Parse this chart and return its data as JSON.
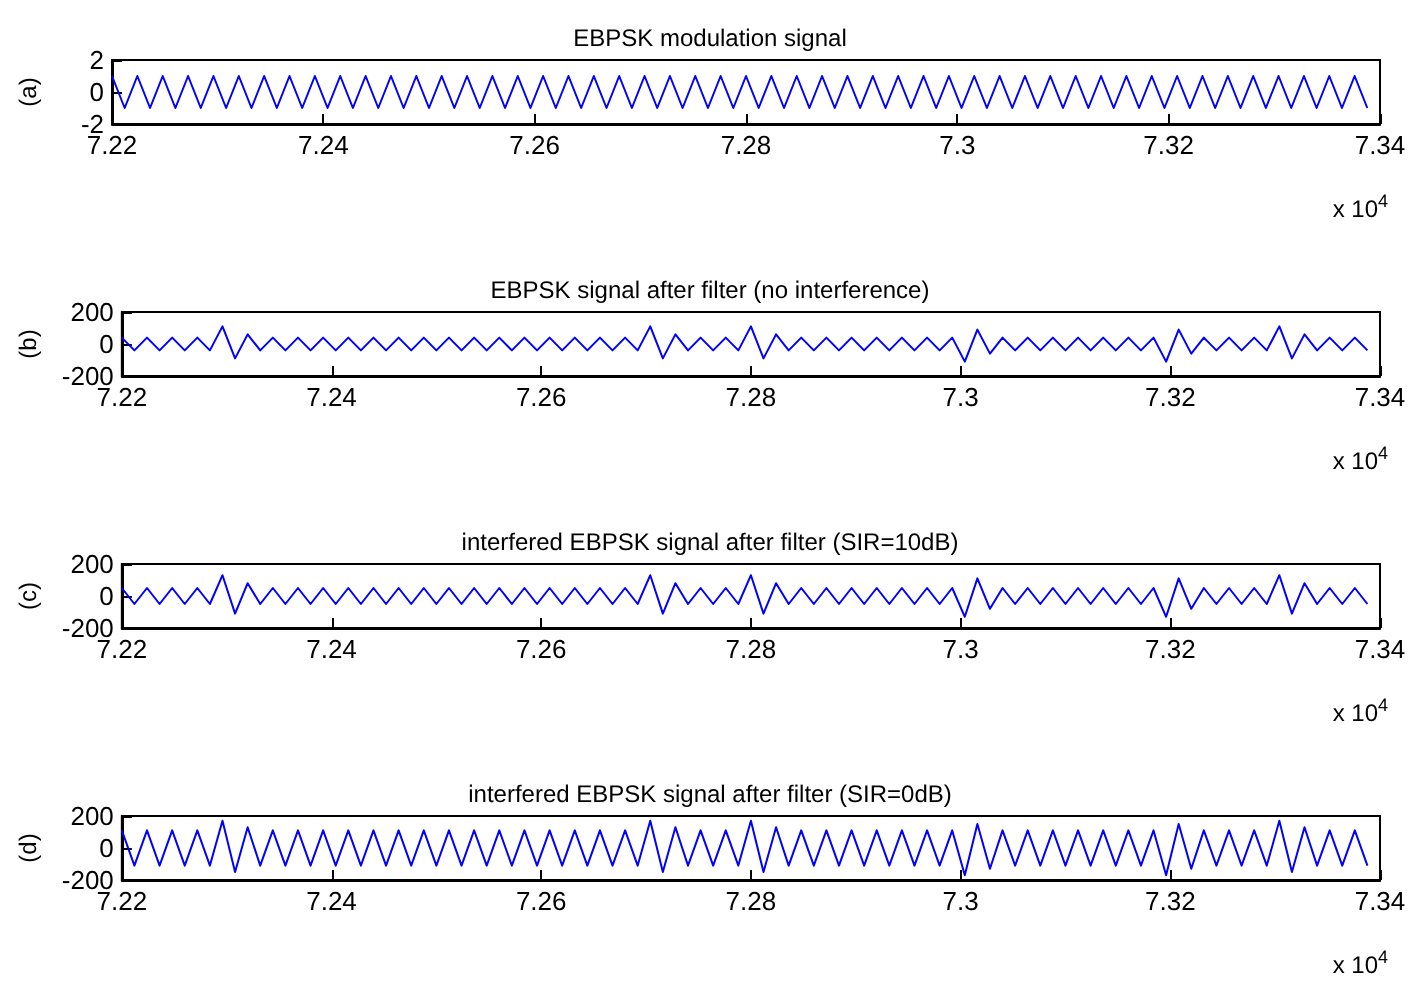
{
  "chart_data": [
    {
      "type": "line",
      "title": "EBPSK modulation signal",
      "ylabel": "(a)",
      "color": "#0000ff",
      "marker": "none",
      "grid": false,
      "x": [
        7.22,
        7.2212,
        7.2224,
        7.2236,
        7.2248,
        7.226,
        7.2272,
        7.2284,
        7.2296,
        7.2308,
        7.232,
        7.2332,
        7.2344,
        7.2356,
        7.2368,
        7.238,
        7.2392,
        7.2404,
        7.2416,
        7.2428,
        7.244,
        7.2452,
        7.2464,
        7.2476,
        7.2488,
        7.25,
        7.2512,
        7.2524,
        7.2536,
        7.2548,
        7.256,
        7.2572,
        7.2584,
        7.2596,
        7.2608,
        7.262,
        7.2632,
        7.2644,
        7.2656,
        7.2668,
        7.268,
        7.2692,
        7.2704,
        7.2716,
        7.2728,
        7.274,
        7.2752,
        7.2764,
        7.2776,
        7.2788,
        7.28,
        7.2812,
        7.2824,
        7.2836,
        7.2848,
        7.286,
        7.2872,
        7.2884,
        7.2896,
        7.2908,
        7.292,
        7.2932,
        7.2944,
        7.2956,
        7.2968,
        7.298,
        7.2992,
        7.3004,
        7.3016,
        7.3028,
        7.304,
        7.3052,
        7.3064,
        7.3076,
        7.3088,
        7.31,
        7.3112,
        7.3124,
        7.3136,
        7.3148,
        7.316,
        7.3172,
        7.3184,
        7.3196,
        7.3208,
        7.322,
        7.3232,
        7.3244,
        7.3256,
        7.3268,
        7.328,
        7.3292,
        7.3304,
        7.3316,
        7.3328,
        7.334,
        7.3352,
        7.3364,
        7.3376,
        7.3388
      ],
      "values": [
        1,
        -1,
        1,
        -1,
        1,
        -1,
        1,
        -1,
        1,
        -1,
        1,
        -1,
        1,
        -1,
        1,
        -1,
        1,
        -1,
        1,
        -1,
        1,
        -1,
        1,
        -1,
        1,
        -1,
        1,
        -1,
        1,
        -1,
        1,
        -1,
        1,
        -1,
        1,
        -1,
        1,
        -1,
        1,
        -1,
        1,
        -1,
        1,
        -1,
        1,
        -1,
        1,
        -1,
        1,
        -1,
        1,
        -1,
        1,
        -1,
        1,
        -1,
        1,
        -1,
        1,
        -1,
        1,
        -1,
        1,
        -1,
        1,
        -1,
        1,
        -1,
        1,
        -1,
        1,
        -1,
        1,
        -1,
        1,
        -1,
        1,
        -1,
        1,
        -1,
        1,
        -1,
        1,
        -1,
        1,
        -1,
        1,
        -1,
        1,
        -1,
        1,
        -1,
        1,
        -1,
        1,
        -1,
        1,
        -1,
        1,
        -1
      ],
      "xlim": [
        7.22,
        7.34
      ],
      "xticks": [
        7.22,
        7.24,
        7.26,
        7.28,
        7.3,
        7.32,
        7.34
      ],
      "ylim": [
        -2,
        2
      ],
      "yticks": [
        -2,
        0,
        2
      ],
      "annotations": [
        "x 10$^{4}$"
      ]
    },
    {
      "type": "line",
      "title": "EBPSK signal after filter (no interference)",
      "ylabel": "(b)",
      "color": "#0000ff",
      "marker": "none",
      "grid": false,
      "x": [
        7.22,
        7.2212,
        7.2224,
        7.2236,
        7.2248,
        7.226,
        7.2272,
        7.2284,
        7.2296,
        7.2308,
        7.232,
        7.2332,
        7.2344,
        7.2356,
        7.2368,
        7.238,
        7.2392,
        7.2404,
        7.2416,
        7.2428,
        7.244,
        7.2452,
        7.2464,
        7.2476,
        7.2488,
        7.25,
        7.2512,
        7.2524,
        7.2536,
        7.2548,
        7.256,
        7.2572,
        7.2584,
        7.2596,
        7.2608,
        7.262,
        7.2632,
        7.2644,
        7.2656,
        7.2668,
        7.268,
        7.2692,
        7.2704,
        7.2716,
        7.2728,
        7.274,
        7.2752,
        7.2764,
        7.2776,
        7.2788,
        7.28,
        7.2812,
        7.2824,
        7.2836,
        7.2848,
        7.286,
        7.2872,
        7.2884,
        7.2896,
        7.2908,
        7.292,
        7.2932,
        7.2944,
        7.2956,
        7.2968,
        7.298,
        7.2992,
        7.3004,
        7.3016,
        7.3028,
        7.304,
        7.3052,
        7.3064,
        7.3076,
        7.3088,
        7.31,
        7.3112,
        7.3124,
        7.3136,
        7.3148,
        7.316,
        7.3172,
        7.3184,
        7.3196,
        7.3208,
        7.322,
        7.3232,
        7.3244,
        7.3256,
        7.3268,
        7.328,
        7.3292,
        7.3304,
        7.3316,
        7.3328,
        7.334,
        7.3352,
        7.3364,
        7.3376,
        7.3388
      ],
      "values": [
        40,
        -40,
        40,
        -40,
        40,
        -40,
        40,
        -40,
        110,
        -90,
        60,
        -40,
        40,
        -40,
        40,
        -40,
        40,
        -40,
        40,
        -40,
        40,
        -40,
        40,
        -40,
        40,
        -40,
        40,
        -40,
        40,
        -40,
        40,
        -40,
        40,
        -40,
        40,
        -40,
        40,
        -40,
        40,
        -40,
        40,
        -40,
        110,
        -90,
        60,
        -40,
        40,
        -40,
        40,
        -40,
        110,
        -90,
        60,
        -40,
        40,
        -40,
        40,
        -40,
        40,
        -40,
        40,
        -40,
        40,
        -40,
        40,
        -40,
        40,
        -110,
        90,
        -60,
        40,
        -40,
        40,
        -40,
        40,
        -40,
        40,
        -40,
        40,
        -40,
        40,
        -40,
        40,
        -110,
        90,
        -60,
        40,
        -40,
        40,
        -40,
        40,
        -40,
        110,
        -90,
        60,
        -40,
        40,
        -40,
        40,
        -40
      ],
      "xlim": [
        7.22,
        7.34
      ],
      "xticks": [
        7.22,
        7.24,
        7.26,
        7.28,
        7.3,
        7.32,
        7.34
      ],
      "ylim": [
        -200,
        200
      ],
      "yticks": [
        -200,
        0,
        200
      ],
      "annotations": [
        "x 10$^{4}$"
      ]
    },
    {
      "type": "line",
      "title": "interfered EBPSK signal after filter (SIR=10dB)",
      "ylabel": "(c)",
      "color": "#0000ff",
      "marker": "none",
      "grid": false,
      "x": [
        7.22,
        7.2212,
        7.2224,
        7.2236,
        7.2248,
        7.226,
        7.2272,
        7.2284,
        7.2296,
        7.2308,
        7.232,
        7.2332,
        7.2344,
        7.2356,
        7.2368,
        7.238,
        7.2392,
        7.2404,
        7.2416,
        7.2428,
        7.244,
        7.2452,
        7.2464,
        7.2476,
        7.2488,
        7.25,
        7.2512,
        7.2524,
        7.2536,
        7.2548,
        7.256,
        7.2572,
        7.2584,
        7.2596,
        7.2608,
        7.262,
        7.2632,
        7.2644,
        7.2656,
        7.2668,
        7.268,
        7.2692,
        7.2704,
        7.2716,
        7.2728,
        7.274,
        7.2752,
        7.2764,
        7.2776,
        7.2788,
        7.28,
        7.2812,
        7.2824,
        7.2836,
        7.2848,
        7.286,
        7.2872,
        7.2884,
        7.2896,
        7.2908,
        7.292,
        7.2932,
        7.2944,
        7.2956,
        7.2968,
        7.298,
        7.2992,
        7.3004,
        7.3016,
        7.3028,
        7.304,
        7.3052,
        7.3064,
        7.3076,
        7.3088,
        7.31,
        7.3112,
        7.3124,
        7.3136,
        7.3148,
        7.316,
        7.3172,
        7.3184,
        7.3196,
        7.3208,
        7.322,
        7.3232,
        7.3244,
        7.3256,
        7.3268,
        7.328,
        7.3292,
        7.3304,
        7.3316,
        7.3328,
        7.334,
        7.3352,
        7.3364,
        7.3376,
        7.3388
      ],
      "values": [
        50,
        -50,
        50,
        -50,
        50,
        -50,
        50,
        -50,
        130,
        -110,
        80,
        -50,
        50,
        -50,
        50,
        -50,
        50,
        -50,
        50,
        -50,
        50,
        -50,
        50,
        -50,
        50,
        -50,
        50,
        -50,
        50,
        -50,
        50,
        -50,
        50,
        -50,
        50,
        -50,
        50,
        -50,
        50,
        -50,
        50,
        -50,
        130,
        -110,
        80,
        -50,
        50,
        -50,
        50,
        -50,
        130,
        -110,
        80,
        -50,
        50,
        -50,
        50,
        -50,
        50,
        -50,
        50,
        -50,
        50,
        -50,
        50,
        -50,
        50,
        -130,
        110,
        -80,
        50,
        -50,
        50,
        -50,
        50,
        -50,
        50,
        -50,
        50,
        -50,
        50,
        -50,
        50,
        -130,
        110,
        -80,
        50,
        -50,
        50,
        -50,
        50,
        -50,
        130,
        -110,
        80,
        -50,
        50,
        -50,
        50,
        -50
      ],
      "xlim": [
        7.22,
        7.34
      ],
      "xticks": [
        7.22,
        7.24,
        7.26,
        7.28,
        7.3,
        7.32,
        7.34
      ],
      "ylim": [
        -200,
        200
      ],
      "yticks": [
        -200,
        0,
        200
      ],
      "annotations": [
        "x 10$^{4}$"
      ]
    },
    {
      "type": "line",
      "title": "interfered EBPSK signal after filter (SIR=0dB)",
      "ylabel": "(d)",
      "color": "#0000ff",
      "marker": "none",
      "grid": false,
      "x": [
        7.22,
        7.2212,
        7.2224,
        7.2236,
        7.2248,
        7.226,
        7.2272,
        7.2284,
        7.2296,
        7.2308,
        7.232,
        7.2332,
        7.2344,
        7.2356,
        7.2368,
        7.238,
        7.2392,
        7.2404,
        7.2416,
        7.2428,
        7.244,
        7.2452,
        7.2464,
        7.2476,
        7.2488,
        7.25,
        7.2512,
        7.2524,
        7.2536,
        7.2548,
        7.256,
        7.2572,
        7.2584,
        7.2596,
        7.2608,
        7.262,
        7.2632,
        7.2644,
        7.2656,
        7.2668,
        7.268,
        7.2692,
        7.2704,
        7.2716,
        7.2728,
        7.274,
        7.2752,
        7.2764,
        7.2776,
        7.2788,
        7.28,
        7.2812,
        7.2824,
        7.2836,
        7.2848,
        7.286,
        7.2872,
        7.2884,
        7.2896,
        7.2908,
        7.292,
        7.2932,
        7.2944,
        7.2956,
        7.2968,
        7.298,
        7.2992,
        7.3004,
        7.3016,
        7.3028,
        7.304,
        7.3052,
        7.3064,
        7.3076,
        7.3088,
        7.31,
        7.3112,
        7.3124,
        7.3136,
        7.3148,
        7.316,
        7.3172,
        7.3184,
        7.3196,
        7.3208,
        7.322,
        7.3232,
        7.3244,
        7.3256,
        7.3268,
        7.328,
        7.3292,
        7.3304,
        7.3316,
        7.3328,
        7.334,
        7.3352,
        7.3364,
        7.3376,
        7.3388
      ],
      "values": [
        110,
        -110,
        110,
        -110,
        110,
        -110,
        110,
        -110,
        170,
        -150,
        130,
        -110,
        110,
        -110,
        110,
        -110,
        110,
        -110,
        110,
        -110,
        110,
        -110,
        110,
        -110,
        110,
        -110,
        110,
        -110,
        110,
        -110,
        110,
        -110,
        110,
        -110,
        110,
        -110,
        110,
        -110,
        110,
        -110,
        110,
        -110,
        170,
        -150,
        130,
        -110,
        110,
        -110,
        110,
        -110,
        170,
        -150,
        130,
        -110,
        110,
        -110,
        110,
        -110,
        110,
        -110,
        110,
        -110,
        110,
        -110,
        110,
        -110,
        110,
        -170,
        150,
        -130,
        110,
        -110,
        110,
        -110,
        110,
        -110,
        110,
        -110,
        110,
        -110,
        110,
        -110,
        110,
        -170,
        150,
        -130,
        110,
        -110,
        110,
        -110,
        110,
        -110,
        170,
        -150,
        130,
        -110,
        110,
        -110,
        110,
        -110
      ],
      "xlim": [
        7.22,
        7.34
      ],
      "xticks": [
        7.22,
        7.24,
        7.26,
        7.28,
        7.3,
        7.32,
        7.34
      ],
      "ylim": [
        -200,
        200
      ],
      "yticks": [
        -200,
        0,
        200
      ],
      "annotations": [
        "x 10$^{4}$"
      ]
    }
  ]
}
